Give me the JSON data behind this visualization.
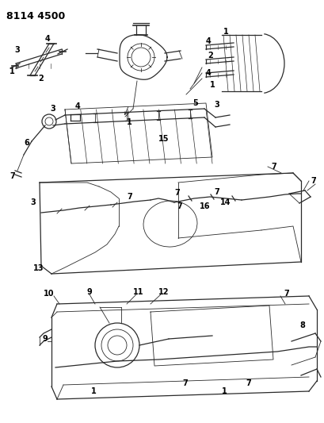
{
  "title": "8114 4500",
  "bg_color": "#ffffff",
  "line_color": "#2a2a2a",
  "label_color": "#000000",
  "title_fontsize": 9,
  "label_fontsize": 7
}
